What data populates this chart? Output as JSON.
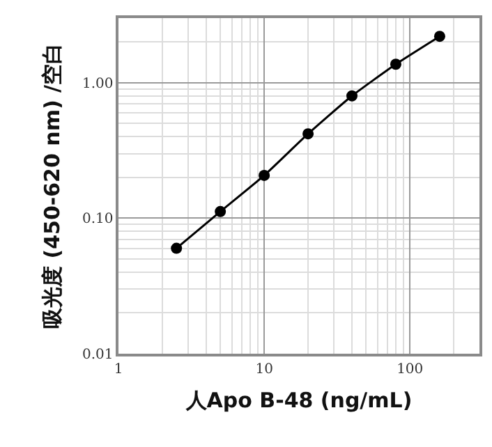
{
  "chart_data": {
    "type": "line",
    "xlabel": "人Apo B-48 (ng/mL)",
    "ylabel": "吸光度 (450-620 nm) /空白",
    "x": [
      2.5,
      5,
      10,
      20,
      40,
      80,
      160
    ],
    "series": [
      {
        "color": "#000000",
        "values": [
          0.06,
          0.112,
          0.207,
          0.42,
          0.8,
          1.37,
          2.2
        ]
      }
    ],
    "xlim": [
      1,
      300
    ],
    "ylim": [
      0.01,
      3
    ],
    "xticks": [
      1,
      10,
      100
    ],
    "yticks": [
      0.01,
      {
        "value": 0.1,
        "label": "0.10"
      },
      {
        "value": 1,
        "label": "1.00"
      }
    ],
    "log": "xy",
    "grid": true,
    "marker": "circle",
    "line_style": "solid"
  }
}
